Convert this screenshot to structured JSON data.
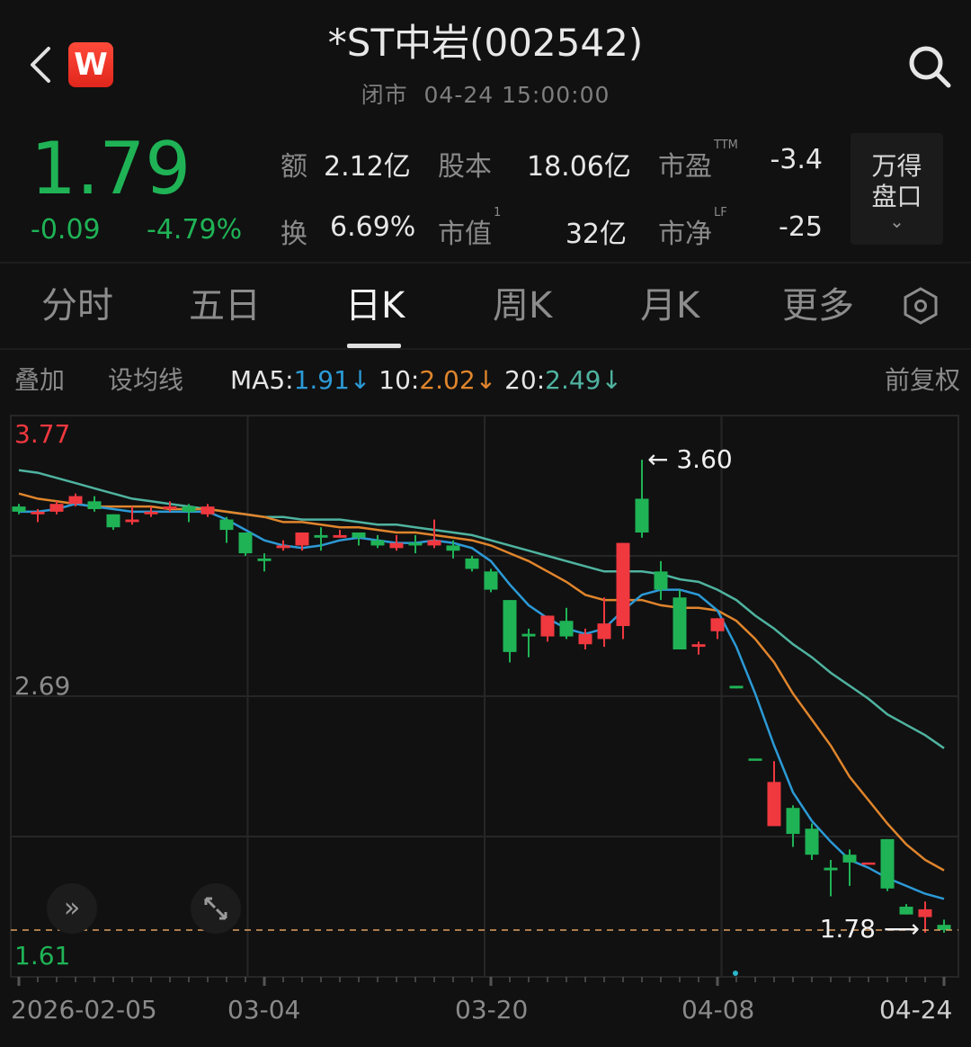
{
  "header": {
    "title": "*ST中岩(002542)",
    "status": "闭市",
    "datetime": "04-24 15:00:00",
    "logo_letter": "W",
    "icons": {
      "back": "chevron-left-icon",
      "search": "search-icon"
    }
  },
  "quote": {
    "price": "1.79",
    "change": "-0.09",
    "change_pct": "-4.79%",
    "color_down": "#1fb356",
    "color_up": "#f0383f",
    "stats": [
      {
        "label": "额",
        "value": "2.12亿"
      },
      {
        "label": "股本",
        "value": "18.06亿"
      },
      {
        "label": "市盈",
        "sup": "TTM",
        "value": "-3.4"
      },
      {
        "label": "换",
        "value": "6.69%"
      },
      {
        "label": "市值",
        "sup": "1",
        "value": "32亿"
      },
      {
        "label": "市净",
        "sup": "LF",
        "value": "-25"
      }
    ],
    "panel_button": {
      "line1": "万得",
      "line2": "盘口",
      "chevron": "⌄"
    }
  },
  "tabs": [
    {
      "label": "分时",
      "active": false
    },
    {
      "label": "五日",
      "active": false
    },
    {
      "label": "日K",
      "active": true
    },
    {
      "label": "周K",
      "active": false
    },
    {
      "label": "月K",
      "active": false
    },
    {
      "label": "更多",
      "active": false
    }
  ],
  "toolbar": {
    "overlay": "叠加",
    "set_ma": "设均线",
    "ma5_label": "MA5:",
    "ma5_value": "1.91",
    "ma5_arrow": "↓",
    "ma10_label": "10:",
    "ma10_value": "2.02",
    "ma10_arrow": "↓",
    "ma20_label": "20:",
    "ma20_value": "2.49",
    "ma20_arrow": "↓",
    "adjust": "前复权",
    "colors": {
      "ma5": "#2c9ad6",
      "ma10": "#e0852c",
      "ma20": "#4fb3a0"
    }
  },
  "chart_data": {
    "type": "candlestick",
    "y_axis": {
      "max_label": "3.77",
      "mid_label": "2.69",
      "min_label": "1.61",
      "ylim": [
        1.61,
        3.77
      ]
    },
    "x_labels": [
      {
        "index": 0,
        "label": "2026-02-05"
      },
      {
        "index": 13,
        "label": "03-04"
      },
      {
        "index": 25,
        "label": "03-20"
      },
      {
        "index": 37,
        "label": "04-08"
      },
      {
        "index": 49,
        "label": "04-24"
      }
    ],
    "annotations": {
      "high": {
        "index": 33,
        "label": "3.60"
      },
      "low": {
        "index": 48,
        "label": "1.78"
      }
    },
    "last_price_line": 1.79,
    "candles_ohlc": [
      [
        3.42,
        3.43,
        3.39,
        3.4
      ],
      [
        3.39,
        3.41,
        3.36,
        3.4
      ],
      [
        3.4,
        3.44,
        3.39,
        3.43
      ],
      [
        3.43,
        3.47,
        3.42,
        3.46
      ],
      [
        3.44,
        3.46,
        3.4,
        3.41
      ],
      [
        3.39,
        3.39,
        3.33,
        3.34
      ],
      [
        3.36,
        3.42,
        3.35,
        3.37
      ],
      [
        3.39,
        3.42,
        3.38,
        3.4
      ],
      [
        3.41,
        3.44,
        3.4,
        3.42
      ],
      [
        3.42,
        3.43,
        3.36,
        3.4
      ],
      [
        3.39,
        3.43,
        3.38,
        3.42
      ],
      [
        3.37,
        3.38,
        3.28,
        3.33
      ],
      [
        3.32,
        3.32,
        3.23,
        3.24
      ],
      [
        3.22,
        3.24,
        3.17,
        3.21
      ],
      [
        3.26,
        3.29,
        3.25,
        3.27
      ],
      [
        3.27,
        3.32,
        3.25,
        3.32
      ],
      [
        3.31,
        3.34,
        3.25,
        3.3
      ],
      [
        3.3,
        3.33,
        3.3,
        3.31
      ],
      [
        3.32,
        3.32,
        3.27,
        3.3
      ],
      [
        3.29,
        3.31,
        3.26,
        3.27
      ],
      [
        3.26,
        3.31,
        3.25,
        3.28
      ],
      [
        3.28,
        3.31,
        3.24,
        3.27
      ],
      [
        3.27,
        3.37,
        3.26,
        3.29
      ],
      [
        3.27,
        3.29,
        3.22,
        3.25
      ],
      [
        3.22,
        3.23,
        3.17,
        3.18
      ],
      [
        3.17,
        3.18,
        3.09,
        3.1
      ],
      [
        3.06,
        3.06,
        2.82,
        2.86
      ],
      [
        2.93,
        2.95,
        2.84,
        2.92
      ],
      [
        2.92,
        3.0,
        2.9,
        3.0
      ],
      [
        2.98,
        3.03,
        2.91,
        2.92
      ],
      [
        2.89,
        2.95,
        2.87,
        2.93
      ],
      [
        2.91,
        3.07,
        2.88,
        2.97
      ],
      [
        2.96,
        3.28,
        2.91,
        3.28
      ],
      [
        3.45,
        3.6,
        3.3,
        3.32
      ],
      [
        3.17,
        3.21,
        3.06,
        3.1
      ],
      [
        3.07,
        3.1,
        2.87,
        2.87
      ],
      [
        2.88,
        2.9,
        2.85,
        2.89
      ],
      [
        2.94,
        2.99,
        2.91,
        2.99
      ],
      [
        2.73,
        2.73,
        2.72,
        2.72
      ],
      [
        2.45,
        2.45,
        2.45,
        2.45
      ],
      [
        2.19,
        2.44,
        2.19,
        2.36
      ],
      [
        2.26,
        2.27,
        2.11,
        2.16
      ],
      [
        2.18,
        2.2,
        2.06,
        2.08
      ],
      [
        2.03,
        2.06,
        1.92,
        2.02
      ],
      [
        2.08,
        2.1,
        1.96,
        2.05
      ],
      [
        2.05,
        2.05,
        2.05,
        2.05
      ],
      [
        2.14,
        2.14,
        1.94,
        1.95
      ],
      [
        1.88,
        1.89,
        1.85,
        1.85
      ],
      [
        1.84,
        1.9,
        1.78,
        1.87
      ],
      [
        1.81,
        1.83,
        1.78,
        1.79
      ]
    ],
    "ma5": [
      3.4,
      3.4,
      3.41,
      3.43,
      3.42,
      3.41,
      3.4,
      3.4,
      3.4,
      3.4,
      3.4,
      3.37,
      3.33,
      3.29,
      3.27,
      3.26,
      3.27,
      3.29,
      3.3,
      3.29,
      3.28,
      3.28,
      3.29,
      3.28,
      3.26,
      3.21,
      3.12,
      3.04,
      2.99,
      2.95,
      2.93,
      2.95,
      3.02,
      3.08,
      3.1,
      3.1,
      3.08,
      3.02,
      2.88,
      2.7,
      2.5,
      2.32,
      2.21,
      2.13,
      2.06,
      2.03,
      1.99,
      1.96,
      1.93,
      1.91
    ],
    "ma10": [
      3.47,
      3.45,
      3.44,
      3.43,
      3.42,
      3.42,
      3.42,
      3.42,
      3.41,
      3.41,
      3.41,
      3.4,
      3.39,
      3.38,
      3.36,
      3.36,
      3.35,
      3.34,
      3.34,
      3.33,
      3.32,
      3.32,
      3.31,
      3.3,
      3.29,
      3.27,
      3.24,
      3.21,
      3.17,
      3.13,
      3.08,
      3.06,
      3.06,
      3.06,
      3.04,
      3.03,
      3.03,
      3.02,
      2.98,
      2.91,
      2.82,
      2.7,
      2.6,
      2.5,
      2.38,
      2.29,
      2.2,
      2.12,
      2.06,
      2.02
    ],
    "ma20": [
      3.56,
      3.55,
      3.53,
      3.51,
      3.49,
      3.47,
      3.45,
      3.44,
      3.43,
      3.42,
      3.41,
      3.4,
      3.39,
      3.38,
      3.38,
      3.37,
      3.37,
      3.37,
      3.36,
      3.35,
      3.35,
      3.34,
      3.33,
      3.32,
      3.31,
      3.29,
      3.27,
      3.25,
      3.23,
      3.21,
      3.19,
      3.17,
      3.17,
      3.17,
      3.16,
      3.14,
      3.13,
      3.1,
      3.06,
      3.0,
      2.95,
      2.89,
      2.84,
      2.78,
      2.73,
      2.68,
      2.62,
      2.58,
      2.54,
      2.49
    ]
  },
  "chart_controls": {
    "scroll_right": "»",
    "icons": {
      "scroll": "double-chevron-right-icon",
      "fullscreen": "expand-icon",
      "settings": "hexagon-settings-icon"
    }
  }
}
